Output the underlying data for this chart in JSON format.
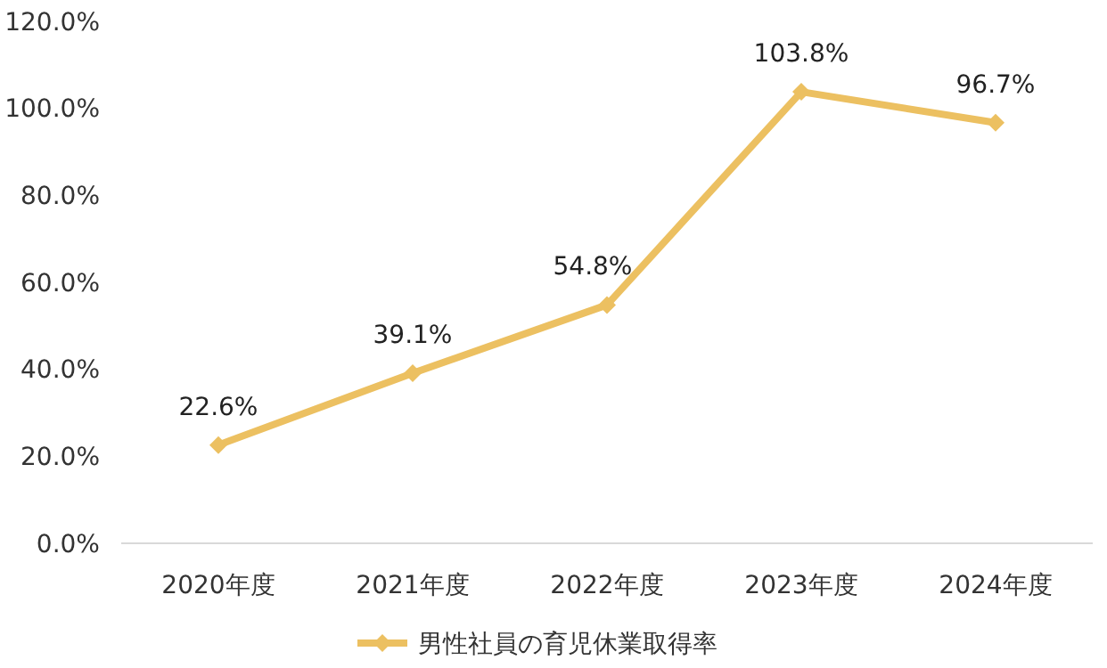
{
  "chart_data": {
    "type": "line",
    "categories": [
      "2020年度",
      "2021年度",
      "2022年度",
      "2023年度",
      "2024年度"
    ],
    "series": [
      {
        "name": "男性社員の育児休業取得率",
        "color": "#ecc061",
        "values": [
          22.6,
          39.1,
          54.8,
          103.8,
          96.7
        ]
      }
    ],
    "value_labels": [
      "22.6%",
      "39.1%",
      "54.8%",
      "103.8%",
      "96.7%"
    ],
    "ylim": [
      0,
      120
    ],
    "yticks": [
      {
        "value": 0,
        "label": "0.0%"
      },
      {
        "value": 20,
        "label": "20.0%"
      },
      {
        "value": 40,
        "label": "40.0%"
      },
      {
        "value": 60,
        "label": "60.0%"
      },
      {
        "value": 80,
        "label": "80.0%"
      },
      {
        "value": 100,
        "label": "100.0%"
      },
      {
        "value": 120,
        "label": "120.0%"
      }
    ],
    "grid": false,
    "legend": "bottom",
    "marker": "diamond",
    "line_style": "solid"
  }
}
